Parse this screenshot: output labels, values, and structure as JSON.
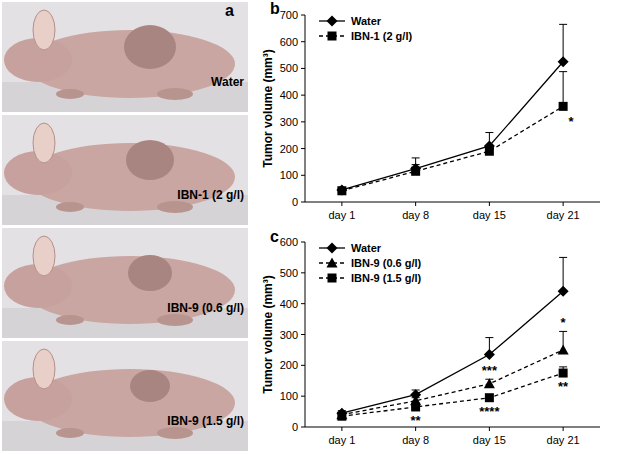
{
  "panel_a": {
    "title": "a",
    "labels": [
      "Water",
      "IBN-1 (2 g/l)",
      "IBN-9 (0.6 g/l)",
      "IBN-9 (1.5 g/l)"
    ]
  },
  "chart_data": [
    {
      "type": "line",
      "title": "b",
      "y_label": "Tumor volume (mm³)",
      "categories": [
        "day 1",
        "day 8",
        "day 15",
        "day 21"
      ],
      "ylim": [
        0,
        700
      ],
      "yticks": [
        0,
        100,
        200,
        300,
        400,
        500,
        600,
        700
      ],
      "legend": "top-left",
      "series": [
        {
          "name": "Water",
          "color": "#000000",
          "marker": "diamond",
          "line_style": "solid",
          "values": [
            45,
            125,
            210,
            525
          ],
          "errors": [
            10,
            40,
            50,
            140
          ]
        },
        {
          "name": "IBN-1 (2 g/l)",
          "color": "#000000",
          "marker": "square",
          "line_style": "dashed",
          "values": [
            42,
            115,
            190,
            358
          ],
          "errors": [
            6,
            25,
            20,
            130
          ]
        }
      ],
      "annotations": [
        {
          "text": "*",
          "series": 1,
          "index": 3
        }
      ]
    },
    {
      "type": "line",
      "title": "c",
      "y_label": "Tumor volume (mm³)",
      "categories": [
        "day 1",
        "day 8",
        "day 15",
        "day 21"
      ],
      "ylim": [
        0,
        600
      ],
      "yticks": [
        0,
        100,
        200,
        300,
        400,
        500,
        600
      ],
      "legend": "top-left",
      "series": [
        {
          "name": "Water",
          "color": "#000000",
          "marker": "diamond",
          "line_style": "solid",
          "values": [
            45,
            105,
            235,
            440
          ],
          "errors": [
            8,
            15,
            55,
            110
          ]
        },
        {
          "name": "IBN-9 (0.6 g/l)",
          "color": "#000000",
          "marker": "triangle",
          "line_style": "dashed",
          "values": [
            40,
            85,
            140,
            250
          ],
          "errors": [
            5,
            10,
            15,
            60
          ]
        },
        {
          "name": "IBN-9 (1.5 g/l)",
          "color": "#000000",
          "marker": "square",
          "line_style": "dashed",
          "values": [
            35,
            65,
            95,
            175
          ],
          "errors": [
            5,
            10,
            10,
            20
          ]
        }
      ],
      "annotations": [
        {
          "text": "**",
          "series": 2,
          "index": 1
        },
        {
          "text": "***",
          "series": 1,
          "index": 2
        },
        {
          "text": "****",
          "series": 2,
          "index": 2
        },
        {
          "text": "*",
          "series": 1,
          "index": 3
        },
        {
          "text": "**",
          "series": 2,
          "index": 3
        }
      ]
    }
  ]
}
